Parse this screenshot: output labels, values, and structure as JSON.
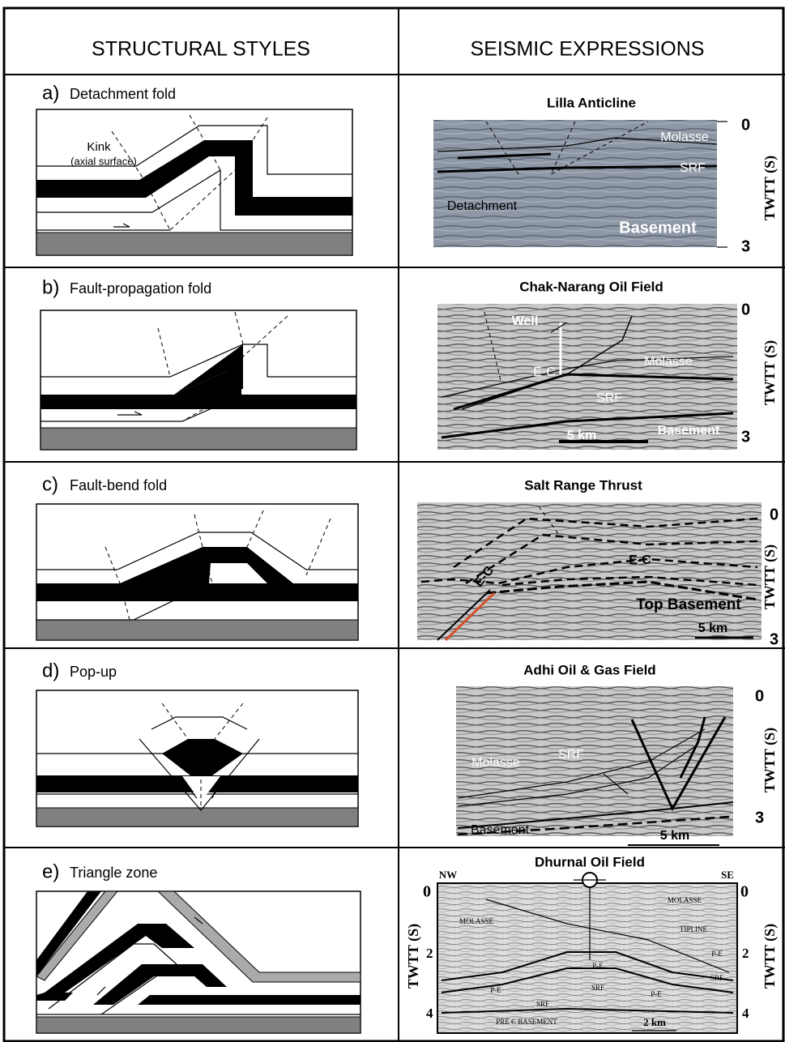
{
  "header": {
    "left": "STRUCTURAL STYLES",
    "right": "SEISMIC EXPRESSIONS"
  },
  "rows": [
    {
      "letter": "a)",
      "label": "Detachment fold",
      "diagram_labels": [
        "Kink",
        "(axial surface)"
      ],
      "seismic_title": "Lilla  Anticline",
      "seismic_labels": [
        "Molasse",
        "SRF",
        "Detachment",
        "Basement"
      ],
      "axis_label": "TWTT (S)",
      "axis_ticks": [
        0,
        3
      ]
    },
    {
      "letter": "b)",
      "label": "Fault-propagation fold",
      "seismic_title": "Chak-Narang Oil Field",
      "seismic_labels": [
        "Well",
        "Molasse",
        "E-C",
        "SRF",
        "5 km",
        "Basement"
      ],
      "axis_label": "TWTT (S)",
      "axis_ticks": [
        0,
        3
      ]
    },
    {
      "letter": "c)",
      "label": "Fault-bend fold",
      "seismic_title": "Salt Range Thrust",
      "seismic_labels": [
        "E-C",
        "E-C",
        "Top Basement",
        "5 km"
      ],
      "axis_label": "TWTT (S)",
      "axis_ticks": [
        0,
        3
      ]
    },
    {
      "letter": "d)",
      "label": "Pop-up",
      "seismic_title": "Adhi Oil & Gas Field",
      "seismic_labels": [
        "Molasse",
        "SRF",
        "Basement",
        "5 km"
      ],
      "axis_label": "TWTT (S)",
      "axis_ticks": [
        0,
        3
      ]
    },
    {
      "letter": "e)",
      "label": "Triangle zone",
      "seismic_title": "Dhurnal Oil Field",
      "seismic_labels": [
        "NW",
        "SE",
        "MOLASSE",
        "MOLASSE",
        "TIPLINE",
        "P-E",
        "P-E",
        "P-E",
        "P-E",
        "SRF",
        "SRF",
        "SRF",
        "PRE Є BASEMENT",
        "2 km"
      ],
      "axis_label": "TWTT (S)",
      "axis_ticks": [
        0,
        2,
        4
      ]
    }
  ]
}
